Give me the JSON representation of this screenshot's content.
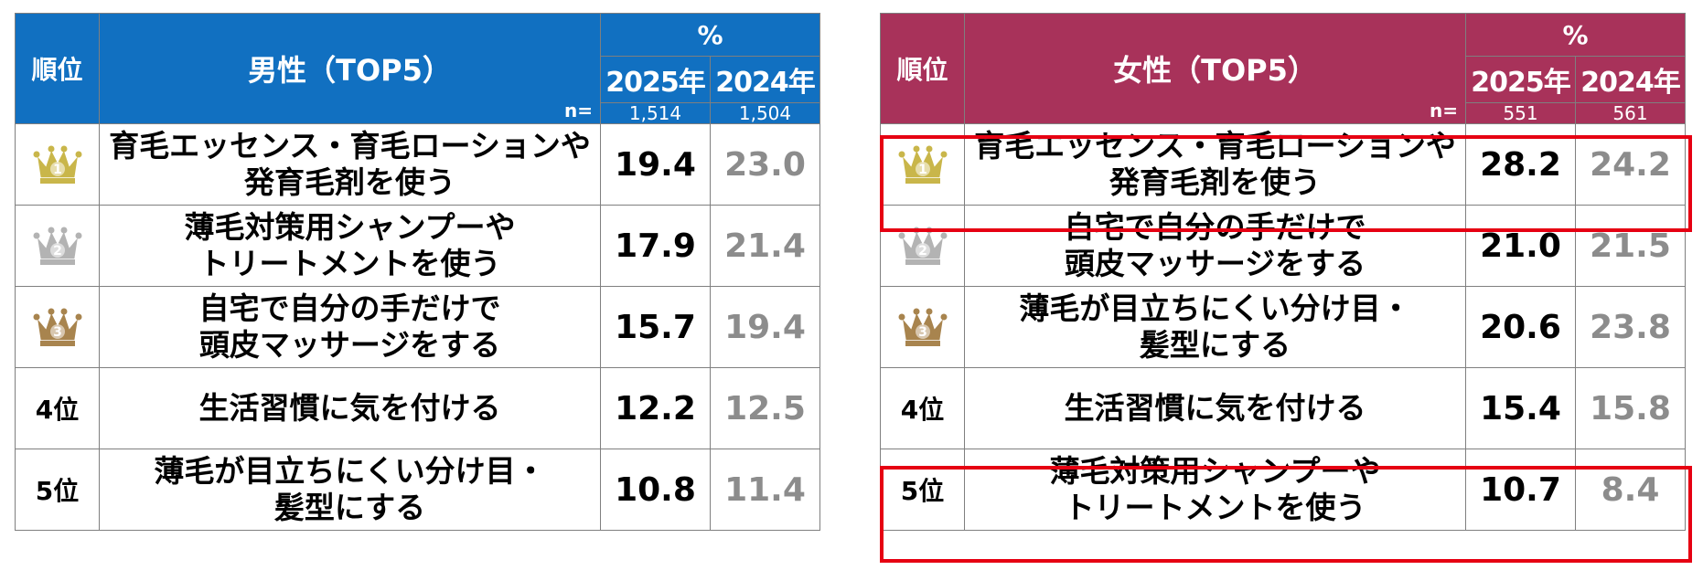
{
  "colors": {
    "male_header": "#1170c1",
    "female_header": "#a8325a",
    "highlight": "#e60012",
    "gold": "#c9b64a",
    "silver": "#b3b3b3",
    "bronze": "#a8844e"
  },
  "chart_data": [
    {
      "type": "table",
      "header": {
        "rank": "順位",
        "title": "男性（TOP5）",
        "unit": "%",
        "n_label": "n=",
        "years": [
          "2025年",
          "2024年"
        ],
        "n": [
          "1,514",
          "1,504"
        ]
      },
      "rows": [
        {
          "rank_icon": "crown-gold-1-icon",
          "rank": "1",
          "item_lines": [
            "育毛エッセンス・育毛ローションや",
            "発育毛剤を使う"
          ],
          "v2025": "19.4",
          "v2024": "23.0"
        },
        {
          "rank_icon": "crown-silver-2-icon",
          "rank": "2",
          "item_lines": [
            "薄毛対策用シャンプーや",
            "トリートメントを使う"
          ],
          "v2025": "17.9",
          "v2024": "21.4"
        },
        {
          "rank_icon": "crown-bronze-3-icon",
          "rank": "3",
          "item_lines": [
            "自宅で自分の手だけで",
            "頭皮マッサージをする"
          ],
          "v2025": "15.7",
          "v2024": "19.4"
        },
        {
          "rank_label": "4位",
          "item_lines": [
            "生活習慣に気を付ける"
          ],
          "v2025": "12.2",
          "v2024": "12.5"
        },
        {
          "rank_label": "5位",
          "item_lines": [
            "薄毛が目立ちにくい分け目・",
            "髪型にする"
          ],
          "v2025": "10.8",
          "v2024": "11.4"
        }
      ]
    },
    {
      "type": "table",
      "header": {
        "rank": "順位",
        "title": "女性（TOP5）",
        "unit": "%",
        "n_label": "n=",
        "years": [
          "2025年",
          "2024年"
        ],
        "n": [
          "551",
          "561"
        ]
      },
      "rows": [
        {
          "rank_icon": "crown-gold-1-icon",
          "rank": "1",
          "item_lines": [
            "育毛エッセンス・育毛ローションや",
            "発育毛剤を使う"
          ],
          "v2025": "28.2",
          "v2024": "24.2"
        },
        {
          "rank_icon": "crown-silver-2-icon",
          "rank": "2",
          "item_lines": [
            "自宅で自分の手だけで",
            "頭皮マッサージをする"
          ],
          "v2025": "21.0",
          "v2024": "21.5"
        },
        {
          "rank_icon": "crown-bronze-3-icon",
          "rank": "3",
          "item_lines": [
            "薄毛が目立ちにくい分け目・",
            "髪型にする"
          ],
          "v2025": "20.6",
          "v2024": "23.8"
        },
        {
          "rank_label": "4位",
          "item_lines": [
            "生活習慣に気を付ける"
          ],
          "v2025": "15.4",
          "v2024": "15.8"
        },
        {
          "rank_label": "5位",
          "item_lines": [
            "薄毛対策用シャンプーや",
            "トリートメントを使う"
          ],
          "v2025": "10.7",
          "v2024": "8.4"
        }
      ]
    }
  ]
}
